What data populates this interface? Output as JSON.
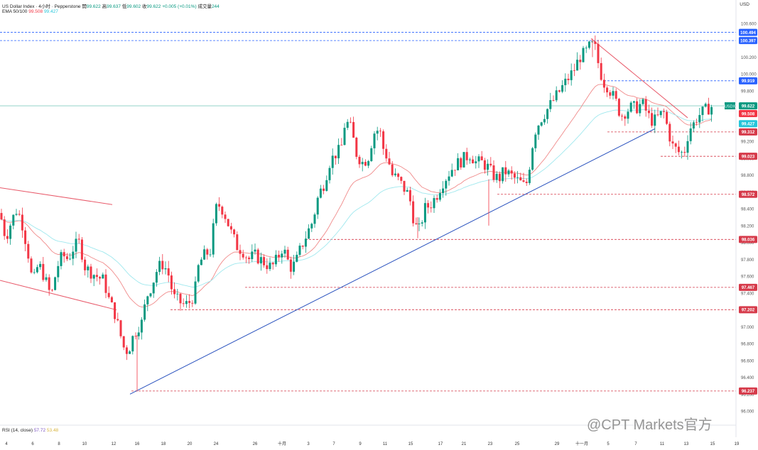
{
  "header": {
    "line1": "US Dollar Index · 4小时 · Pepperstone",
    "open_label": "開",
    "open": "99.622",
    "high_label": "高",
    "high": "99.637",
    "low_label": "低",
    "low": "99.602",
    "close_label": "收",
    "close": "99.622",
    "change": "+0.005 (+0.01%)",
    "volume_label": "成交量",
    "volume": "244",
    "ema_label": "EMA 50/100",
    "ema50": "99.508",
    "ema100": "99.427",
    "rsi_label": "RSI (14, close)",
    "rsi": "57.72",
    "rsi_ma": "53.48"
  },
  "currency": "USD",
  "watermark": "@CPT Markets官方",
  "colors": {
    "up": "#089981",
    "down": "#f23645",
    "ema50": "#f08a8a",
    "ema100": "#9fe8ee",
    "trend_up": "#2a52be",
    "trend_down": "#e85a6a",
    "level_red": "#d63a4a",
    "level_blue": "#2962ff",
    "price_tag": "#089981"
  },
  "chart_data": {
    "type": "candlestick",
    "symbol": "USDX",
    "ylim": [
      96.0,
      100.7
    ],
    "y_ticks": [
      "100.600",
      "100.400",
      "100.200",
      "100.000",
      "99.800",
      "99.600",
      "99.400",
      "99.200",
      "99.000",
      "98.800",
      "98.600",
      "98.400",
      "98.200",
      "98.000",
      "97.800",
      "97.600",
      "97.400",
      "97.200",
      "97.000",
      "96.800",
      "96.600",
      "96.400",
      "96.200",
      "96.000"
    ],
    "x_ticks": [
      "4",
      "6",
      "8",
      "10",
      "12",
      "16",
      "18",
      "20",
      "24",
      "26",
      "十月",
      "3",
      "7",
      "9",
      "11",
      "15",
      "17",
      "21",
      "23",
      "25",
      "29",
      "十一月",
      "5",
      "7",
      "11",
      "13",
      "15",
      "19"
    ],
    "current_price": {
      "label": "USDX",
      "value": "99.622"
    },
    "ema_tags": [
      {
        "name": "EMA 50",
        "value": "99.508"
      },
      {
        "name": "EMA 100",
        "value": "99.427"
      }
    ],
    "resistance_levels": [
      {
        "value": 100.494,
        "label": "100.494"
      },
      {
        "value": 100.397,
        "label": "100.397"
      },
      {
        "value": 99.919,
        "label": "99.919"
      }
    ],
    "support_levels": [
      {
        "value": 99.312,
        "label": "99.312"
      },
      {
        "value": 99.023,
        "label": "99.023"
      },
      {
        "value": 98.572,
        "label": "98.572"
      },
      {
        "value": 98.036,
        "label": "98.036"
      },
      {
        "value": 97.467,
        "label": "97.467"
      },
      {
        "value": 97.202,
        "label": "97.202"
      },
      {
        "value": 96.237,
        "label": "96.237"
      }
    ],
    "close_path": [
      [
        0,
        98.35
      ],
      [
        8,
        98.05
      ],
      [
        16,
        98.25
      ],
      [
        24,
        98.4
      ],
      [
        32,
        98.2
      ],
      [
        40,
        97.85
      ],
      [
        46,
        97.5
      ],
      [
        54,
        97.75
      ],
      [
        62,
        97.6
      ],
      [
        72,
        97.35
      ],
      [
        80,
        97.7
      ],
      [
        88,
        97.85
      ],
      [
        96,
        97.8
      ],
      [
        104,
        97.95
      ],
      [
        112,
        98.0
      ],
      [
        120,
        97.7
      ],
      [
        128,
        97.65
      ],
      [
        136,
        97.6
      ],
      [
        146,
        97.55
      ],
      [
        154,
        97.3
      ],
      [
        162,
        97.15
      ],
      [
        168,
        96.95
      ],
      [
        176,
        96.7
      ],
      [
        182,
        96.75
      ],
      [
        188,
        96.9
      ],
      [
        194,
        97.0
      ],
      [
        200,
        97.05
      ],
      [
        206,
        97.35
      ],
      [
        214,
        97.5
      ],
      [
        222,
        97.7
      ],
      [
        230,
        97.75
      ],
      [
        238,
        97.6
      ],
      [
        244,
        97.35
      ],
      [
        252,
        97.3
      ],
      [
        260,
        97.25
      ],
      [
        268,
        97.3
      ],
      [
        274,
        97.4
      ],
      [
        280,
        97.75
      ],
      [
        288,
        97.85
      ],
      [
        296,
        97.9
      ],
      [
        304,
        98.4
      ],
      [
        310,
        98.45
      ],
      [
        318,
        98.3
      ],
      [
        326,
        98.1
      ],
      [
        334,
        97.95
      ],
      [
        342,
        97.9
      ],
      [
        350,
        97.8
      ],
      [
        358,
        97.85
      ],
      [
        366,
        97.8
      ],
      [
        374,
        97.75
      ],
      [
        382,
        97.7
      ],
      [
        390,
        97.8
      ],
      [
        398,
        97.95
      ],
      [
        404,
        97.8
      ],
      [
        410,
        97.7
      ],
      [
        416,
        97.75
      ],
      [
        424,
        97.95
      ],
      [
        432,
        98.1
      ],
      [
        440,
        98.25
      ],
      [
        448,
        98.55
      ],
      [
        456,
        98.7
      ],
      [
        464,
        98.95
      ],
      [
        472,
        99.05
      ],
      [
        480,
        99.1
      ],
      [
        486,
        99.45
      ],
      [
        494,
        99.35
      ],
      [
        502,
        99.05
      ],
      [
        510,
        98.95
      ],
      [
        518,
        99.0
      ],
      [
        526,
        99.3
      ],
      [
        534,
        99.35
      ],
      [
        540,
        99.1
      ],
      [
        546,
        99.0
      ],
      [
        552,
        98.8
      ],
      [
        560,
        98.75
      ],
      [
        568,
        98.65
      ],
      [
        576,
        98.55
      ],
      [
        584,
        98.2
      ],
      [
        590,
        98.15
      ],
      [
        598,
        98.4
      ],
      [
        606,
        98.45
      ],
      [
        614,
        98.55
      ],
      [
        622,
        98.7
      ],
      [
        630,
        98.8
      ],
      [
        638,
        98.9
      ],
      [
        646,
        98.95
      ],
      [
        654,
        99.0
      ],
      [
        662,
        99.05
      ],
      [
        670,
        98.95
      ],
      [
        678,
        98.95
      ],
      [
        686,
        98.9
      ],
      [
        694,
        98.8
      ],
      [
        702,
        98.75
      ],
      [
        710,
        98.85
      ],
      [
        718,
        98.8
      ],
      [
        726,
        98.75
      ],
      [
        734,
        98.7
      ],
      [
        740,
        98.65
      ],
      [
        746,
        98.95
      ],
      [
        752,
        99.3
      ],
      [
        760,
        99.45
      ],
      [
        768,
        99.55
      ],
      [
        776,
        99.65
      ],
      [
        784,
        99.75
      ],
      [
        792,
        99.85
      ],
      [
        800,
        99.95
      ],
      [
        808,
        100.05
      ],
      [
        816,
        100.2
      ],
      [
        824,
        100.25
      ],
      [
        832,
        100.35
      ],
      [
        838,
        100.3
      ],
      [
        844,
        100.05
      ],
      [
        850,
        99.9
      ],
      [
        856,
        99.85
      ],
      [
        862,
        99.75
      ],
      [
        868,
        99.65
      ],
      [
        874,
        99.5
      ],
      [
        880,
        99.55
      ],
      [
        888,
        99.6
      ],
      [
        896,
        99.6
      ],
      [
        904,
        99.65
      ],
      [
        910,
        99.55
      ],
      [
        916,
        99.45
      ],
      [
        922,
        99.45
      ],
      [
        928,
        99.5
      ],
      [
        934,
        99.55
      ],
      [
        940,
        99.35
      ],
      [
        946,
        99.15
      ],
      [
        952,
        99.1
      ],
      [
        958,
        99.05
      ],
      [
        964,
        99.1
      ],
      [
        970,
        99.35
      ],
      [
        976,
        99.4
      ],
      [
        982,
        99.5
      ],
      [
        990,
        99.55
      ],
      [
        998,
        99.6
      ],
      [
        1004,
        99.62
      ]
    ],
    "trendlines": [
      {
        "name": "rising-support",
        "from": [
          183,
          96.2
        ],
        "to": [
          922,
          99.35
        ]
      },
      {
        "name": "falling-resistance",
        "from": [
          832,
          100.42
        ],
        "to": [
          968,
          99.48
        ]
      },
      {
        "name": "channel-upper",
        "from": [
          0,
          98.65
        ],
        "to": [
          158,
          98.45
        ]
      },
      {
        "name": "channel-lower",
        "from": [
          0,
          97.55
        ],
        "to": [
          164,
          97.2
        ]
      }
    ]
  }
}
